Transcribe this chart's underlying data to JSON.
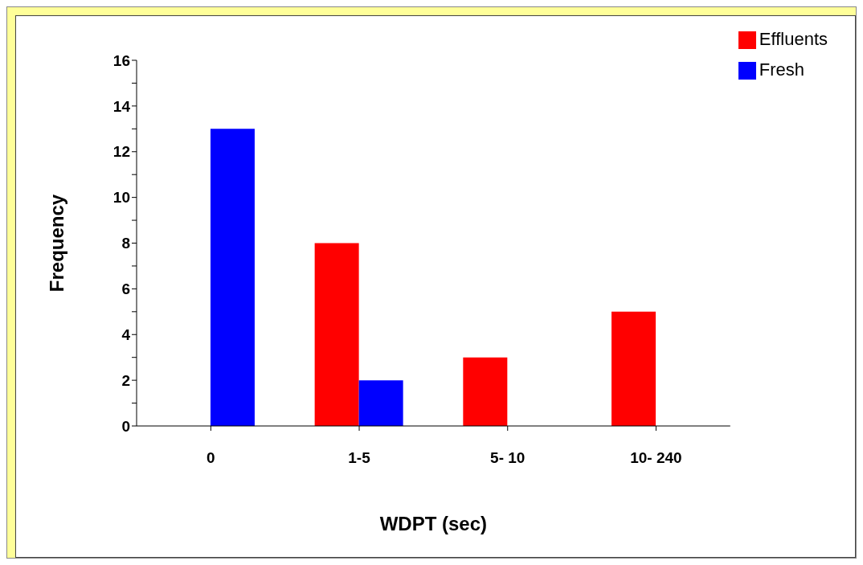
{
  "chart_data": {
    "type": "bar",
    "xlabel": "WDPT (sec)",
    "ylabel": "Frequency",
    "categories": [
      "0",
      "1-5",
      "5- 10",
      "10- 240"
    ],
    "series": [
      {
        "name": "Effluents",
        "color": "#ff0000",
        "values": [
          0,
          8,
          3,
          5
        ]
      },
      {
        "name": "Fresh",
        "color": "#0000ff",
        "values": [
          13,
          2,
          0,
          0
        ]
      }
    ],
    "ylim": [
      0,
      16
    ],
    "yticks": [
      0,
      {
        "value": 1,
        "label": null
      },
      2,
      {
        "value": 3,
        "label": null
      },
      4,
      {
        "value": 5,
        "label": null
      },
      6,
      {
        "value": 7,
        "label": null
      },
      8,
      {
        "value": 9,
        "label": null
      },
      10,
      {
        "value": 11,
        "label": null
      },
      12,
      {
        "value": 13,
        "label": null
      },
      14,
      {
        "value": 15,
        "label": null
      },
      16
    ],
    "grid": false,
    "legend": "top right"
  }
}
